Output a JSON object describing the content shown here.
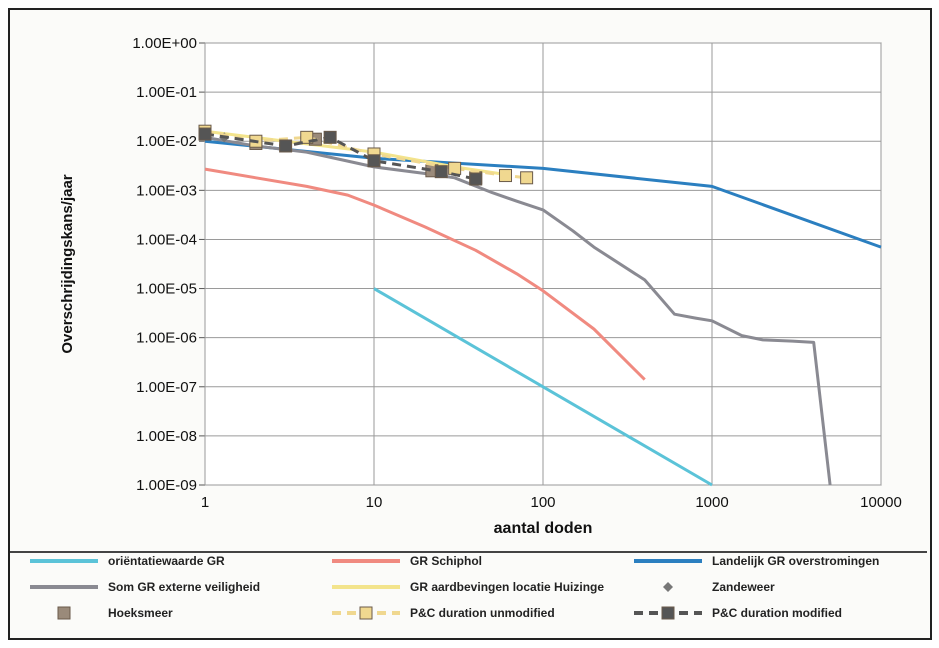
{
  "chart_data": {
    "type": "line",
    "title": "",
    "xlabel": "aantal doden",
    "ylabel": "Overschrijdingskans/jaar",
    "x_scale": "log",
    "y_scale": "log",
    "xlim": [
      1,
      10000
    ],
    "ylim": [
      1e-09,
      1
    ],
    "grid": true,
    "legend_position": "bottom",
    "x_ticks": [
      "1",
      "10",
      "100",
      "1000",
      "10000"
    ],
    "x_tick_values": [
      1,
      10,
      100,
      1000,
      10000
    ],
    "y_ticks": [
      "1.00E+00",
      "1.00E-01",
      "1.00E-02",
      "1.00E-03",
      "1.00E-04",
      "1.00E-05",
      "1.00E-06",
      "1.00E-07",
      "1.00E-08",
      "1.00E-09"
    ],
    "y_tick_values": [
      1,
      0.1,
      0.01,
      0.001,
      0.0001,
      1e-05,
      1e-06,
      1e-07,
      1e-08,
      1e-09
    ],
    "series": [
      {
        "name": "oriëntatiewaarde GR",
        "color": "#5bc3d8",
        "style": "solid",
        "points": [
          [
            10,
            1e-05
          ],
          [
            100,
            1e-07
          ],
          [
            1000,
            1e-09
          ]
        ]
      },
      {
        "name": "GR Schiphol",
        "color": "#f08a80",
        "style": "solid",
        "points": [
          [
            1,
            0.0027
          ],
          [
            2,
            0.0018
          ],
          [
            4,
            0.0012
          ],
          [
            7,
            0.0008
          ],
          [
            10,
            0.0005
          ],
          [
            20,
            0.00018
          ],
          [
            40,
            6e-05
          ],
          [
            70,
            2e-05
          ],
          [
            100,
            9e-06
          ],
          [
            200,
            1.5e-06
          ],
          [
            400,
            1.4e-07
          ]
        ]
      },
      {
        "name": "Landelijk GR overstromingen",
        "color": "#2b7fc0",
        "style": "solid",
        "points": [
          [
            1,
            0.01
          ],
          [
            10,
            0.0045
          ],
          [
            100,
            0.0028
          ],
          [
            1000,
            0.0012
          ],
          [
            10000,
            7e-05
          ]
        ]
      },
      {
        "name": "Som GR externe veiligheid",
        "color": "#8a8a92",
        "style": "solid",
        "points": [
          [
            1,
            0.012
          ],
          [
            2,
            0.008
          ],
          [
            4,
            0.006
          ],
          [
            10,
            0.003
          ],
          [
            20,
            0.0022
          ],
          [
            30,
            0.0018
          ],
          [
            50,
            0.0009
          ],
          [
            70,
            0.0006
          ],
          [
            100,
            0.0004
          ],
          [
            150,
            0.00015
          ],
          [
            200,
            7e-05
          ],
          [
            400,
            1.5e-05
          ],
          [
            600,
            3e-06
          ],
          [
            800,
            2.5e-06
          ],
          [
            1000,
            2.2e-06
          ],
          [
            1500,
            1.1e-06
          ],
          [
            2000,
            9e-07
          ],
          [
            3000,
            8.5e-07
          ],
          [
            4000,
            8e-07
          ],
          [
            5000,
            1e-09
          ]
        ]
      },
      {
        "name": "GR aardbevingen locatie Huizinge",
        "color": "#f3e48c",
        "style": "solid",
        "points": [
          [
            1,
            0.016
          ],
          [
            3,
            0.01
          ],
          [
            10,
            0.006
          ],
          [
            30,
            0.003
          ],
          [
            60,
            0.0021
          ]
        ]
      },
      {
        "name": "Zandeweer",
        "color": "#777777",
        "style": "marker",
        "marker": "diamond",
        "points": [
          [
            1.3,
            0.012
          ]
        ]
      },
      {
        "name": "Hoeksmeer",
        "color": "#9a8a7a",
        "style": "marker",
        "marker": "square",
        "points": [
          [
            1,
            0.014
          ],
          [
            2,
            0.009
          ],
          [
            4.5,
            0.011
          ],
          [
            22,
            0.0025
          ],
          [
            40,
            0.0018
          ]
        ]
      },
      {
        "name": "P&C duration unmodified",
        "color": "#f0d890",
        "style": "dashed",
        "marker": "square",
        "points": [
          [
            1,
            0.016
          ],
          [
            2,
            0.01
          ],
          [
            4,
            0.012
          ],
          [
            10,
            0.0055
          ],
          [
            30,
            0.0028
          ],
          [
            60,
            0.002
          ],
          [
            80,
            0.0018
          ]
        ]
      },
      {
        "name": "P&C duration modified",
        "color": "#555555",
        "style": "dashed",
        "marker": "square",
        "points": [
          [
            1,
            0.014
          ],
          [
            3,
            0.008
          ],
          [
            5.5,
            0.012
          ],
          [
            10,
            0.004
          ],
          [
            25,
            0.0024
          ],
          [
            40,
            0.0017
          ]
        ]
      }
    ]
  }
}
